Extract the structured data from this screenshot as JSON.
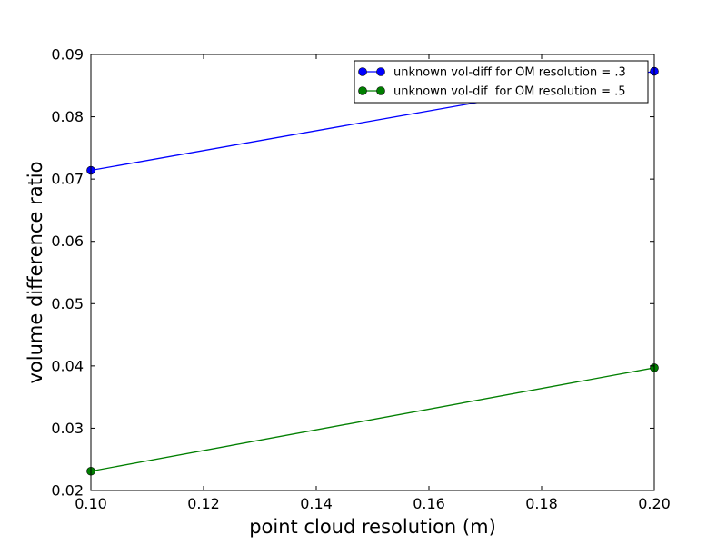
{
  "chart_data": {
    "type": "line",
    "title": "",
    "xlabel": "point cloud resolution (m)",
    "ylabel": "volume difference ratio",
    "xlim": [
      0.1,
      0.2
    ],
    "ylim": [
      0.02,
      0.09
    ],
    "xticks": [
      "0.10",
      "0.12",
      "0.14",
      "0.16",
      "0.18",
      "0.20"
    ],
    "yticks": [
      "0.02",
      "0.03",
      "0.04",
      "0.05",
      "0.06",
      "0.07",
      "0.08",
      "0.09"
    ],
    "grid": false,
    "legend_position": "top-right",
    "series": [
      {
        "name": "unknown vol-diff for OM resolution = .3",
        "color": "#0000ff",
        "marker": "circle",
        "x": [
          0.1,
          0.2
        ],
        "y": [
          0.0714,
          0.0873
        ]
      },
      {
        "name": "unknown vol-dif  for OM resolution = .5",
        "color": "#007f00",
        "marker": "circle",
        "x": [
          0.1,
          0.2
        ],
        "y": [
          0.0231,
          0.0397
        ]
      }
    ]
  }
}
